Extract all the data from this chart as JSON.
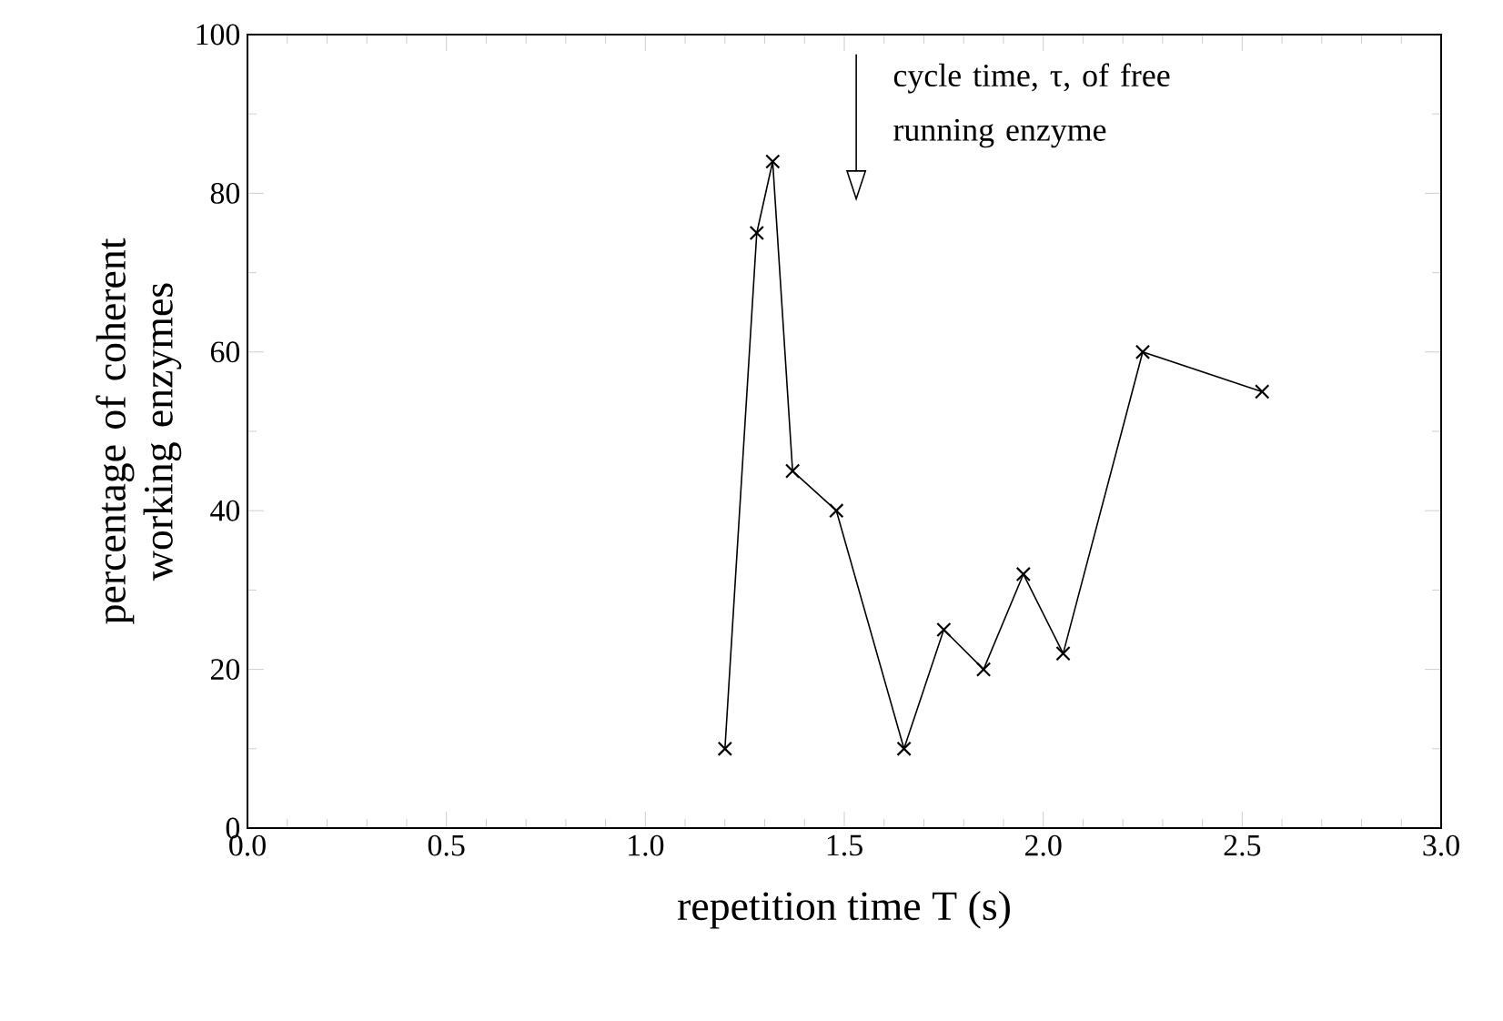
{
  "chart_data": {
    "type": "line",
    "xlabel": "repetition time T (s)",
    "ylabel": "percentage of coherent working enzymes",
    "x": [
      1.2,
      1.28,
      1.32,
      1.37,
      1.48,
      1.65,
      1.75,
      1.85,
      1.95,
      2.05,
      2.25,
      2.55
    ],
    "series": [
      {
        "color": "#000000",
        "values": [
          10,
          75,
          84,
          45,
          40,
          10,
          25,
          20,
          32,
          22,
          60,
          55
        ]
      }
    ],
    "xlim": [
      0,
      3
    ],
    "xticks": [
      {
        "value": 0,
        "label": "0.0"
      },
      0.5,
      {
        "value": 1,
        "label": "1.0"
      },
      1.5,
      {
        "value": 2,
        "label": "2.0"
      },
      2.5,
      {
        "value": 3,
        "label": "3.0"
      }
    ],
    "ylim": [
      0,
      100
    ],
    "yticks": [
      0,
      20,
      40,
      60,
      80,
      100
    ],
    "marker": "cross",
    "line_style": "solid",
    "grid": false,
    "annotations": [
      "cycle time, τ, of free running enzyme"
    ]
  }
}
